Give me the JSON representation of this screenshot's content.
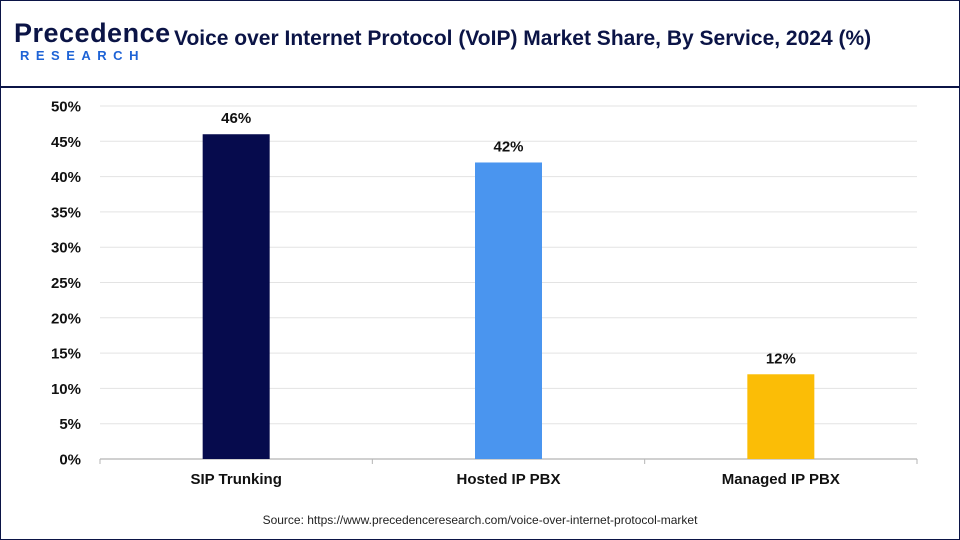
{
  "logo": {
    "top_text": "Precedence",
    "bottom_text": "RESEARCH"
  },
  "header": {
    "title": "Voice over Internet Protocol (VoIP) Market Share, By Service, 2024 (%)"
  },
  "footer": {
    "source": "Source: https://www.precedenceresearch.com/voice-over-internet-protocol-market"
  },
  "chart_data": {
    "type": "bar",
    "categories": [
      "SIP Trunking",
      "Hosted IP PBX",
      "Managed IP PBX"
    ],
    "values": [
      46,
      42,
      12
    ],
    "value_labels": [
      "46%",
      "42%",
      "12%"
    ],
    "colors": [
      "#060b4d",
      "#4a95ef",
      "#fbbd06"
    ],
    "ylim": [
      0,
      50
    ],
    "yticks": [
      "0%",
      "5%",
      "10%",
      "15%",
      "20%",
      "25%",
      "30%",
      "35%",
      "40%",
      "45%",
      "50%"
    ],
    "grid": true,
    "legend": "none",
    "title": "Voice over Internet Protocol (VoIP) Market Share, By Service, 2024 (%)",
    "xlabel": "",
    "ylabel": ""
  }
}
